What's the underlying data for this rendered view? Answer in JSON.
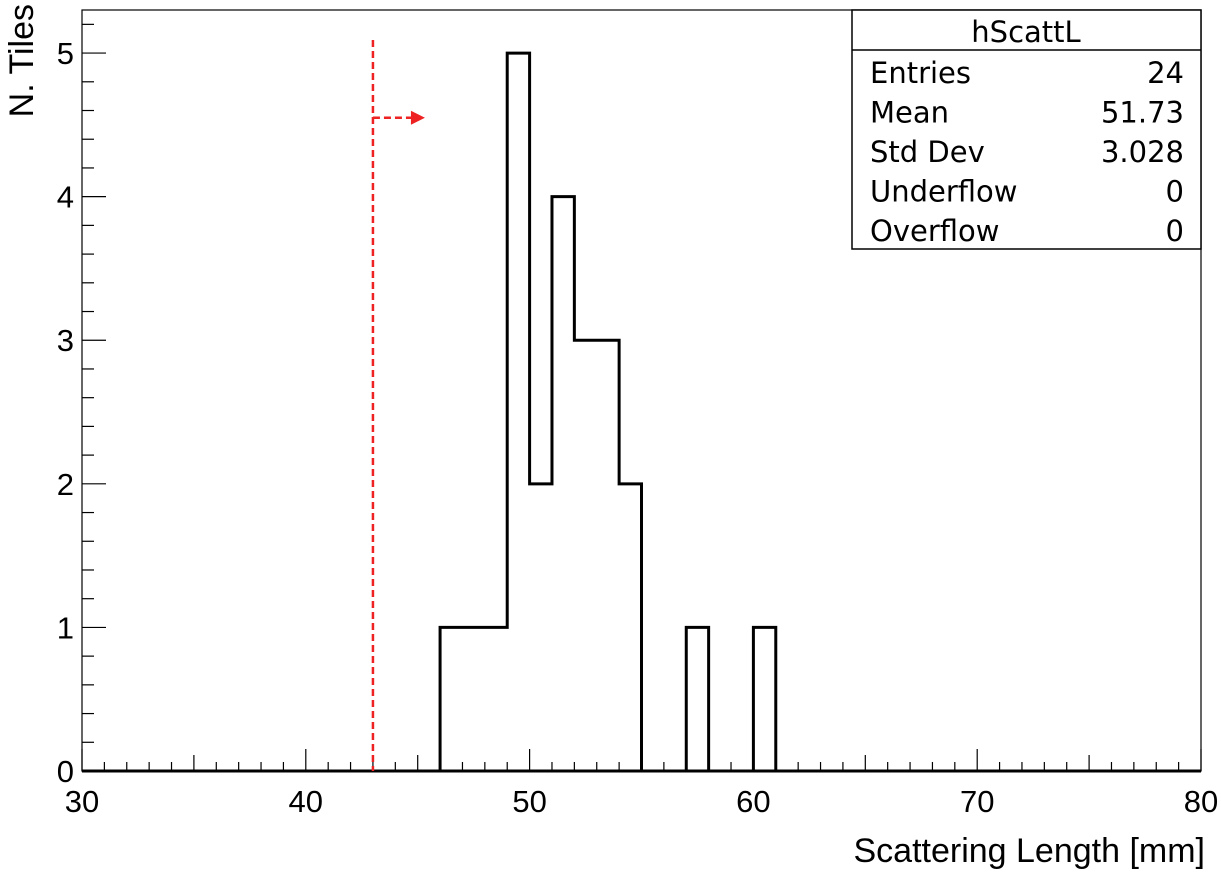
{
  "chart_data": {
    "type": "bar",
    "histogram_name": "hScattL",
    "xlabel": "Scattering Length [mm]",
    "ylabel": "N. Tiles",
    "xlim": [
      30,
      80
    ],
    "ylim": [
      0,
      5.3
    ],
    "x_ticks": [
      "30",
      "40",
      "50",
      "60",
      "70",
      "80"
    ],
    "y_ticks": [
      "0",
      "1",
      "2",
      "3",
      "4",
      "5"
    ],
    "bins": [
      {
        "low": 46.0,
        "high": 47.0,
        "value": 1
      },
      {
        "low": 47.0,
        "high": 48.0,
        "value": 1
      },
      {
        "low": 48.0,
        "high": 49.0,
        "value": 1
      },
      {
        "low": 49.0,
        "high": 50.0,
        "value": 5
      },
      {
        "low": 50.0,
        "high": 51.0,
        "value": 2
      },
      {
        "low": 51.0,
        "high": 52.0,
        "value": 4
      },
      {
        "low": 52.0,
        "high": 53.0,
        "value": 3
      },
      {
        "low": 53.0,
        "high": 54.0,
        "value": 3
      },
      {
        "low": 54.0,
        "high": 55.0,
        "value": 2
      },
      {
        "low": 57.0,
        "high": 58.0,
        "value": 1
      },
      {
        "low": 60.0,
        "high": 61.0,
        "value": 1
      }
    ],
    "threshold": {
      "x": 43,
      "color": "#ee2222",
      "arrow_direction": "right",
      "arrow_y": 4.55
    },
    "stats": [
      {
        "label": "Entries",
        "value": "24"
      },
      {
        "label": "Mean",
        "value": "51.73"
      },
      {
        "label": "Std Dev",
        "value": "3.028"
      },
      {
        "label": "Underflow",
        "value": "0"
      },
      {
        "label": "Overflow",
        "value": "0"
      }
    ],
    "line_color": "#000000",
    "grid": false,
    "legend_placement": "top-right"
  }
}
